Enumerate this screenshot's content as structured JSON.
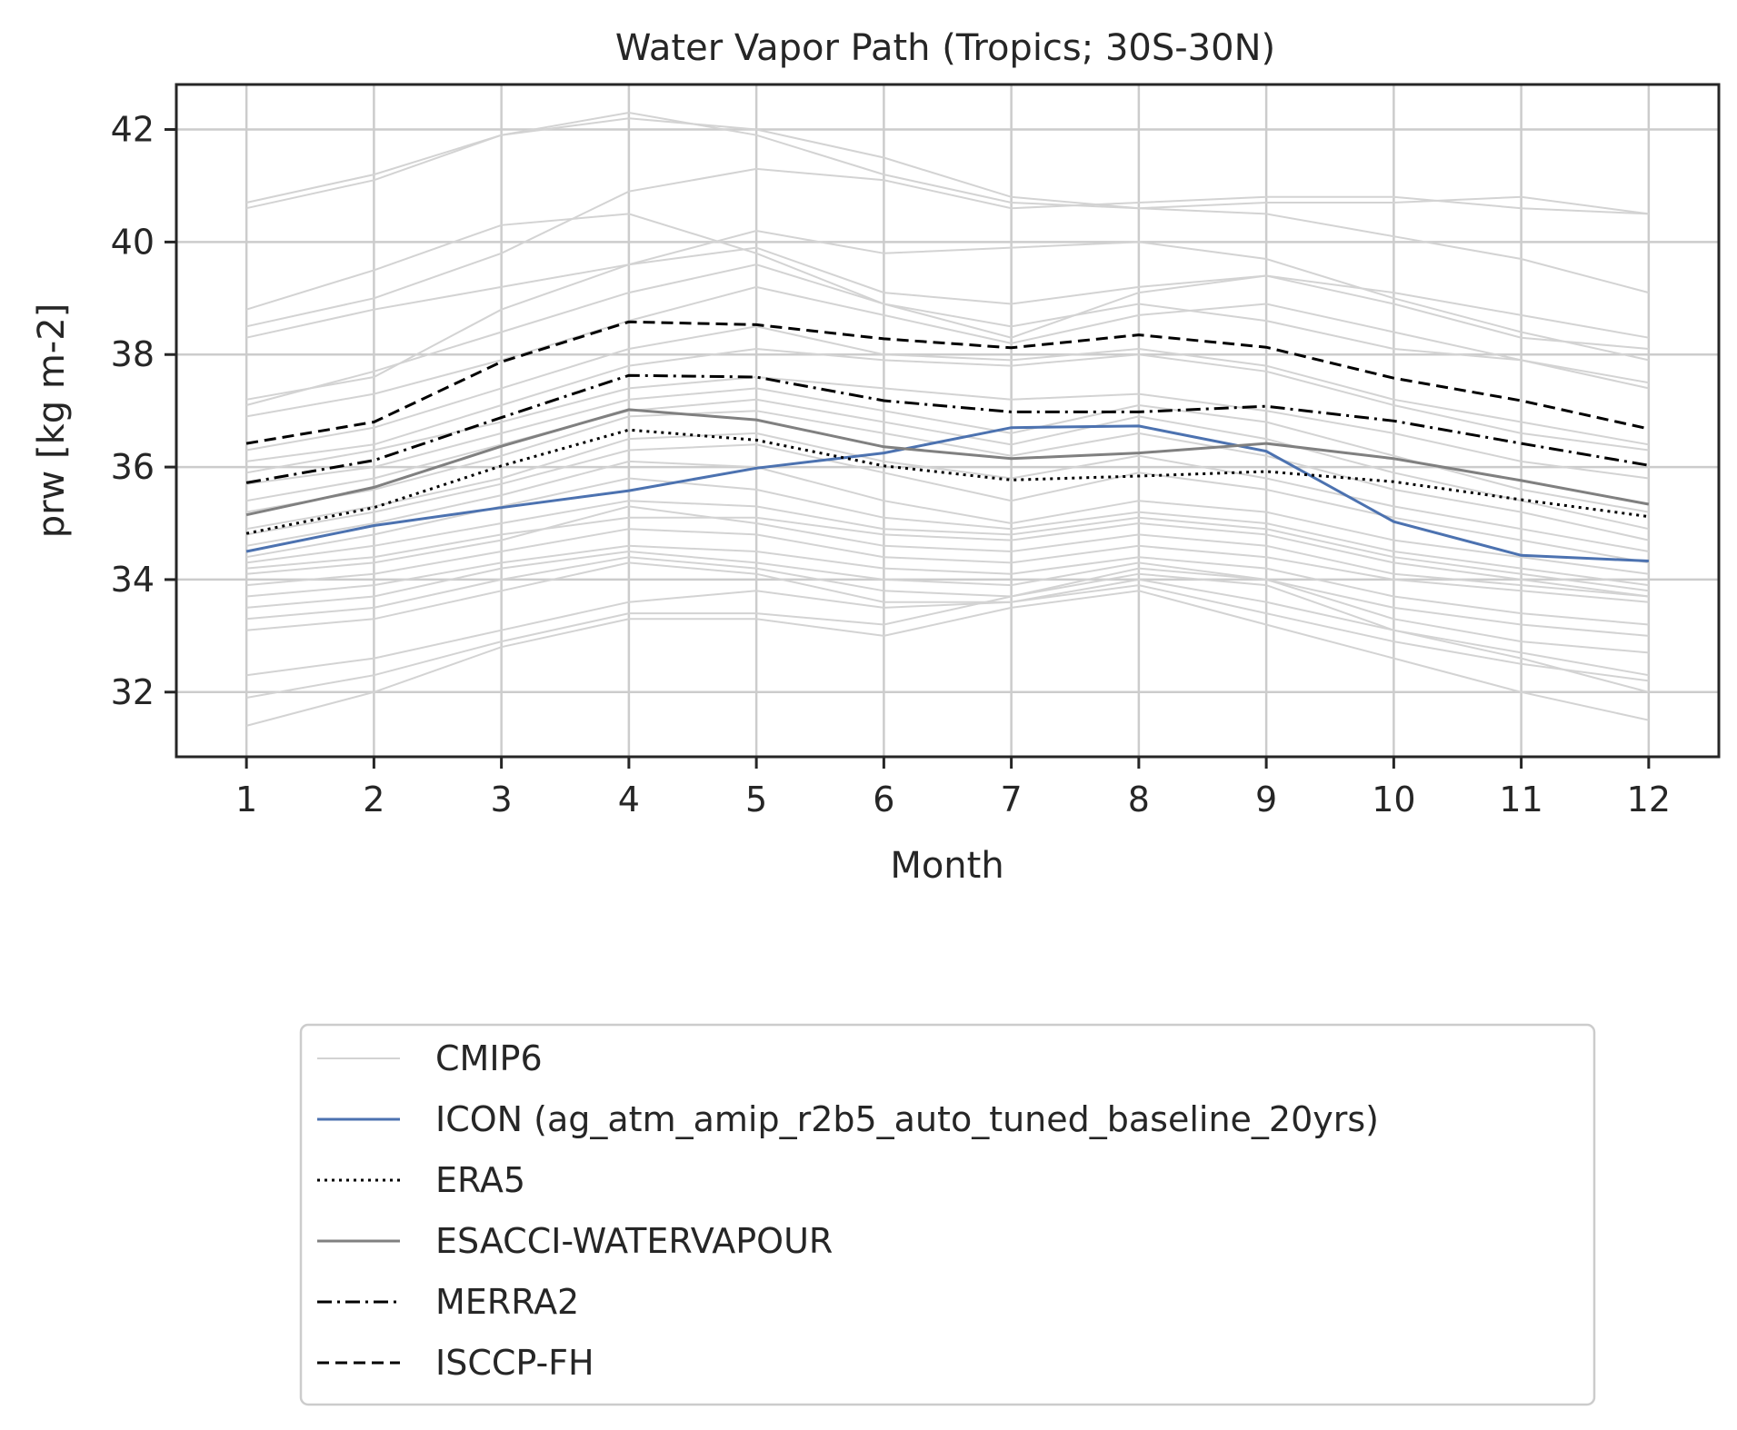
{
  "chart_data": {
    "type": "line",
    "title": "Water Vapor Path (Tropics; 30S-30N)",
    "xlabel": "Month",
    "ylabel": "prw [kg m-2]",
    "x": [
      1,
      2,
      3,
      4,
      5,
      6,
      7,
      8,
      9,
      10,
      11,
      12
    ],
    "xticks": [
      "1",
      "2",
      "3",
      "4",
      "5",
      "6",
      "7",
      "8",
      "9",
      "10",
      "11",
      "12"
    ],
    "yticks": [
      "32",
      "34",
      "36",
      "38",
      "40",
      "42"
    ],
    "xlim": [
      0.45,
      12.55
    ],
    "ylim": [
      30.85,
      42.8
    ],
    "grid": true,
    "legend_position": "below",
    "cmip6_color": "#d3d3d3",
    "cmip6_members": [
      [
        40.7,
        41.2,
        41.9,
        42.2,
        42.0,
        41.5,
        40.8,
        40.6,
        40.7,
        40.7,
        40.8,
        40.5
      ],
      [
        40.6,
        41.1,
        41.9,
        42.3,
        41.9,
        41.2,
        40.7,
        40.6,
        40.5,
        40.1,
        39.7,
        39.1
      ],
      [
        38.8,
        39.5,
        40.3,
        40.5,
        39.8,
        38.9,
        38.3,
        39.1,
        39.4,
        39.1,
        38.7,
        38.3
      ],
      [
        38.5,
        39.0,
        39.8,
        40.9,
        41.3,
        41.1,
        40.6,
        40.7,
        40.8,
        40.8,
        40.6,
        40.5
      ],
      [
        38.3,
        38.8,
        39.2,
        39.6,
        40.2,
        39.8,
        39.9,
        40.0,
        39.7,
        39.0,
        38.4,
        37.9
      ],
      [
        37.2,
        37.6,
        38.8,
        39.6,
        39.9,
        39.1,
        38.9,
        39.2,
        39.4,
        38.9,
        38.3,
        38.1
      ],
      [
        37.1,
        37.7,
        38.4,
        39.1,
        39.6,
        38.9,
        38.5,
        38.9,
        38.6,
        38.1,
        37.9,
        37.5
      ],
      [
        36.9,
        37.3,
        37.9,
        38.6,
        39.2,
        38.7,
        38.2,
        38.7,
        38.9,
        38.4,
        37.9,
        37.4
      ],
      [
        36.3,
        36.7,
        37.4,
        38.1,
        38.5,
        38.0,
        37.9,
        38.1,
        37.8,
        37.2,
        36.8,
        36.4
      ],
      [
        36.1,
        36.4,
        37.1,
        37.8,
        38.1,
        37.9,
        37.8,
        38.0,
        37.7,
        37.1,
        36.6,
        36.3
      ],
      [
        35.9,
        36.3,
        36.8,
        37.4,
        37.6,
        37.4,
        37.2,
        37.3,
        37.0,
        36.6,
        36.1,
        35.8
      ],
      [
        35.7,
        36.0,
        36.6,
        37.2,
        37.4,
        37.0,
        36.6,
        37.1,
        36.8,
        36.2,
        35.6,
        35.2
      ],
      [
        35.4,
        35.8,
        36.4,
        37.0,
        37.2,
        36.8,
        36.4,
        36.9,
        36.5,
        35.9,
        35.4,
        34.9
      ],
      [
        35.2,
        35.6,
        36.2,
        36.9,
        37.0,
        36.6,
        36.2,
        36.6,
        36.2,
        35.6,
        35.2,
        34.7
      ],
      [
        34.9,
        35.3,
        35.8,
        36.5,
        36.6,
        36.1,
        35.8,
        36.2,
        35.8,
        35.3,
        34.9,
        34.5
      ],
      [
        34.8,
        35.2,
        35.7,
        36.3,
        36.4,
        35.9,
        35.4,
        35.9,
        35.6,
        35.1,
        34.7,
        34.3
      ],
      [
        34.6,
        35.0,
        35.5,
        36.1,
        36.0,
        35.4,
        35.0,
        35.4,
        35.2,
        34.7,
        34.4,
        34.1
      ],
      [
        34.4,
        34.8,
        35.3,
        35.8,
        35.6,
        35.1,
        34.9,
        35.2,
        35.0,
        34.5,
        34.2,
        33.9
      ],
      [
        34.3,
        34.6,
        35.0,
        35.4,
        35.3,
        34.9,
        34.8,
        35.1,
        34.9,
        34.4,
        34.1,
        33.8
      ],
      [
        34.2,
        34.4,
        34.8,
        35.1,
        35.1,
        34.8,
        34.7,
        35.0,
        34.8,
        34.3,
        34.0,
        33.7
      ],
      [
        34.1,
        34.3,
        34.7,
        35.3,
        35.0,
        34.6,
        34.5,
        34.8,
        34.6,
        34.1,
        33.9,
        33.7
      ],
      [
        33.9,
        34.1,
        34.5,
        34.9,
        34.8,
        34.4,
        34.3,
        34.6,
        34.4,
        34.0,
        33.8,
        33.6
      ],
      [
        33.7,
        33.9,
        34.3,
        34.6,
        34.5,
        34.2,
        34.1,
        34.4,
        34.2,
        33.7,
        33.4,
        33.2
      ],
      [
        33.5,
        33.7,
        34.2,
        34.5,
        34.3,
        34.0,
        33.9,
        34.3,
        34.0,
        33.5,
        33.2,
        33.0
      ],
      [
        33.3,
        33.5,
        34.0,
        34.4,
        34.2,
        33.8,
        33.7,
        34.2,
        34.0,
        33.3,
        32.9,
        32.7
      ],
      [
        33.1,
        33.3,
        33.8,
        34.3,
        34.1,
        33.6,
        33.6,
        34.0,
        33.6,
        33.1,
        32.7,
        32.3
      ],
      [
        32.3,
        32.6,
        33.1,
        33.6,
        33.8,
        33.5,
        33.6,
        33.9,
        33.4,
        32.9,
        32.5,
        32.2
      ],
      [
        31.9,
        32.3,
        32.9,
        33.4,
        33.4,
        33.2,
        33.7,
        34.1,
        33.9,
        33.1,
        32.6,
        32.0
      ],
      [
        31.4,
        32.0,
        32.8,
        33.3,
        33.3,
        33.0,
        33.5,
        33.8,
        33.2,
        32.6,
        32.0,
        31.5
      ]
    ],
    "series": [
      {
        "name": "ICON (ag_atm_amip_r2b5_auto_tuned_baseline_20yrs)",
        "color": "#4c72b0",
        "dash": "solid",
        "values": [
          34.5,
          34.96,
          35.28,
          35.58,
          35.98,
          36.25,
          36.7,
          36.73,
          36.28,
          35.03,
          34.43,
          34.33
        ]
      },
      {
        "name": "ERA5",
        "color": "#000000",
        "dash": "dotted",
        "values": [
          34.82,
          35.28,
          36.02,
          36.66,
          36.48,
          36.02,
          35.77,
          35.84,
          35.92,
          35.74,
          35.42,
          35.12
        ]
      },
      {
        "name": "ESACCI-WATERVAPOUR",
        "color": "#808080",
        "dash": "solid",
        "values": [
          35.15,
          35.64,
          36.37,
          37.02,
          36.84,
          36.36,
          36.15,
          36.25,
          36.42,
          36.15,
          35.76,
          35.34
        ]
      },
      {
        "name": "MERRA2",
        "color": "#000000",
        "dash": "dashdot",
        "values": [
          35.72,
          36.12,
          36.88,
          37.63,
          37.6,
          37.18,
          36.98,
          36.98,
          37.08,
          36.82,
          36.42,
          36.03
        ]
      },
      {
        "name": "ISCCP-FH",
        "color": "#000000",
        "dash": "dashed",
        "values": [
          36.42,
          36.8,
          37.87,
          38.58,
          38.53,
          38.28,
          38.12,
          38.35,
          38.13,
          37.58,
          37.18,
          36.68
        ]
      }
    ],
    "legend": [
      {
        "label": "CMIP6",
        "color": "#d3d3d3",
        "dash": "solid"
      },
      {
        "label": "ICON (ag_atm_amip_r2b5_auto_tuned_baseline_20yrs)",
        "color": "#4c72b0",
        "dash": "solid"
      },
      {
        "label": "ERA5",
        "color": "#000000",
        "dash": "dotted"
      },
      {
        "label": "ESACCI-WATERVAPOUR",
        "color": "#808080",
        "dash": "solid"
      },
      {
        "label": "MERRA2",
        "color": "#000000",
        "dash": "dashdot"
      },
      {
        "label": "ISCCP-FH",
        "color": "#000000",
        "dash": "dashed"
      }
    ]
  }
}
